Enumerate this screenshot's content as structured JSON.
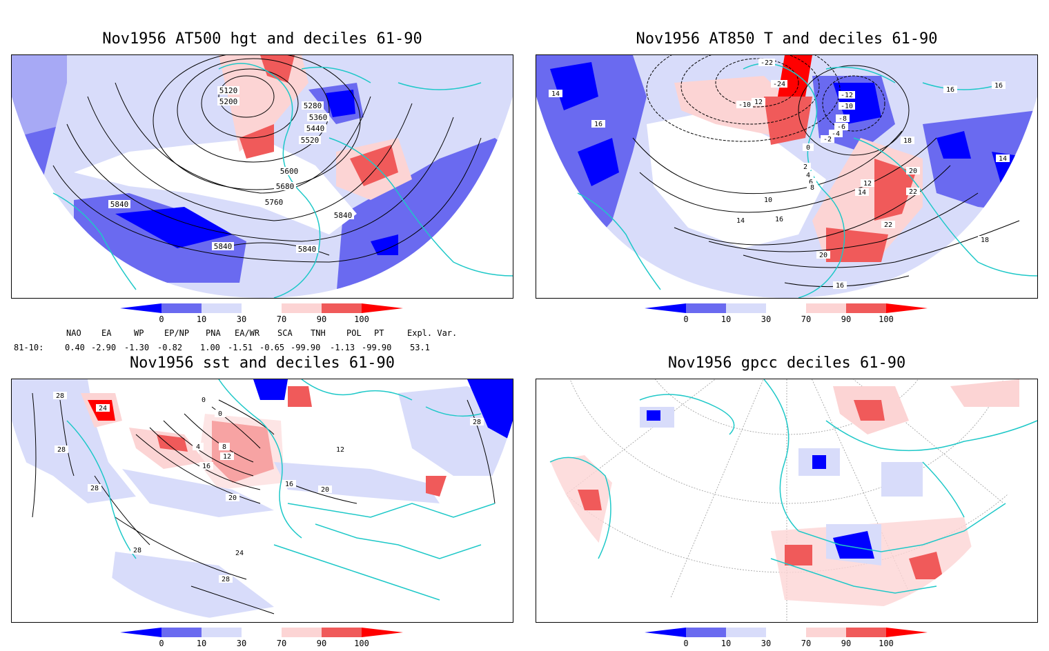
{
  "panels": [
    {
      "id": "p1",
      "title": "Nov1956 AT500 hgt and deciles 61-90",
      "contour_labels": [
        "5120",
        "5200",
        "5280",
        "5360",
        "5440",
        "5520",
        "5600",
        "5680",
        "5760",
        "5840",
        "5840",
        "5840",
        "5840"
      ]
    },
    {
      "id": "p2",
      "title": "Nov1956 AT850 T and deciles 61-90",
      "contour_labels": [
        "-22",
        "-24",
        "-10",
        "12",
        "-12",
        "-10",
        "-8",
        "-6",
        "-4",
        "-2",
        "0",
        "2",
        "4",
        "6",
        "8",
        "10",
        "12",
        "14",
        "14",
        "16",
        "16",
        "16",
        "16",
        "18",
        "18",
        "20",
        "20",
        "22",
        "22",
        "14",
        "14",
        "16"
      ]
    },
    {
      "id": "p3",
      "title": "Nov1956 sst and deciles 61-90",
      "contour_labels": [
        "28",
        "24",
        "28",
        "28",
        "0",
        "0",
        "4",
        "8",
        "12",
        "16",
        "20",
        "24",
        "28",
        "28",
        "12",
        "16",
        "20",
        "28"
      ]
    },
    {
      "id": "p4",
      "title": "Nov1956 gpcc deciles 61-90",
      "contour_labels": []
    }
  ],
  "colorbar": {
    "ticks": [
      "0",
      "10",
      "30",
      "70",
      "90",
      "100"
    ],
    "colors": [
      "#0000ff",
      "#6a6af0",
      "#d8dcfa",
      "#ffffff",
      "#fcd4d4",
      "#f05a5a",
      "#ff0000"
    ]
  },
  "indices": {
    "headers": [
      "NAO",
      "EA",
      "WP",
      "EP/NP",
      "PNA",
      "EA/WR",
      "SCA",
      "TNH",
      "POL",
      "PT",
      "Expl. Var."
    ],
    "row_label": "81-10:",
    "values": [
      "0.40",
      "-2.90",
      "-1.30",
      "-0.82",
      "1.00",
      "-1.51",
      "-0.65",
      "-99.90",
      "-1.13",
      "-99.90",
      "53.1"
    ]
  }
}
